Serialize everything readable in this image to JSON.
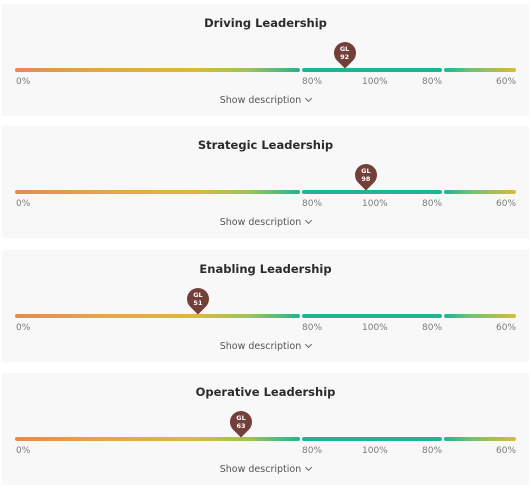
{
  "ticks": [
    "0%",
    "80%",
    "100%",
    "80%",
    "60%"
  ],
  "show_description_label": "Show description",
  "marker_label": "GL",
  "colors": {
    "marker": "#743f38",
    "green": "#1fb592",
    "orange": "#e58a52",
    "yellow": "#ddb83b"
  },
  "cards": [
    {
      "title": "Driving Leadership",
      "value": "92",
      "percent": 92
    },
    {
      "title": "Strategic Leadership",
      "value": "98",
      "percent": 98
    },
    {
      "title": "Enabling Leadership",
      "value": "51",
      "percent": 51
    },
    {
      "title": "Operative Leadership",
      "value": "63",
      "percent": 63
    }
  ]
}
